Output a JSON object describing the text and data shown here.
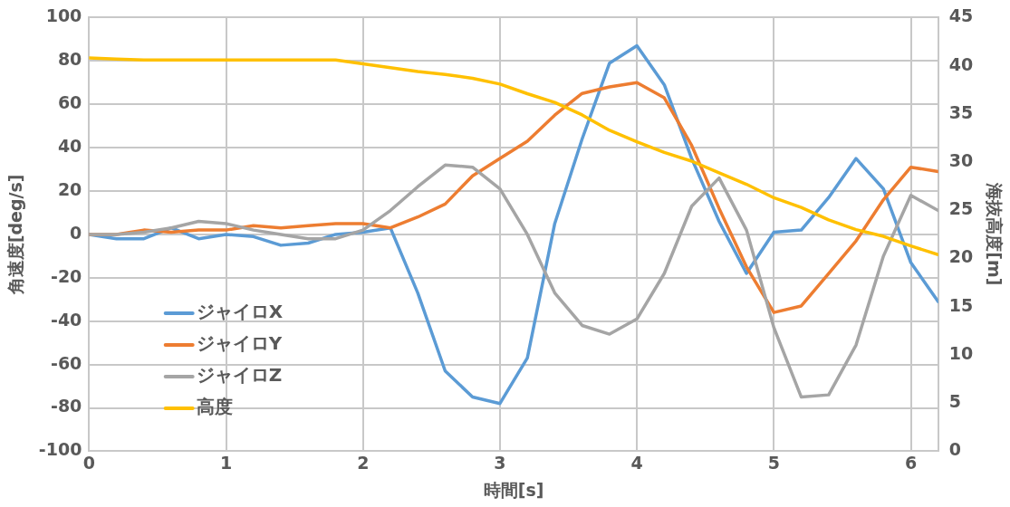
{
  "chart_data": {
    "type": "line",
    "xlabel": "時間[s]",
    "ylabel": "角速度[deg/s]",
    "y2label": "海抜高度[m]",
    "x": [
      0,
      0.2,
      0.4,
      0.6,
      0.8,
      1,
      1.2,
      1.4,
      1.6,
      1.8,
      2,
      2.2,
      2.4,
      2.6,
      2.8,
      3,
      3.2,
      3.4,
      3.6,
      3.8,
      4,
      4.2,
      4.4,
      4.6,
      4.8,
      5,
      5.2,
      5.4,
      5.6,
      5.8,
      6,
      6.2
    ],
    "series": [
      {
        "name": "ジャイロX",
        "color": "#5b9bd5",
        "values": [
          0,
          -2,
          -2,
          3,
          -2,
          0,
          -1,
          -5,
          -4,
          0,
          1,
          3,
          -27,
          -63,
          -75,
          -78,
          -57,
          5,
          44,
          79,
          87,
          69,
          35,
          6,
          -18,
          1,
          2,
          17,
          35,
          21,
          -13,
          -31
        ]
      },
      {
        "name": "ジャイロY",
        "color": "#ed7d31",
        "values": [
          0,
          0,
          2,
          1,
          2,
          2,
          4,
          3,
          4,
          5,
          5,
          3,
          8,
          14,
          27,
          35,
          43,
          55,
          65,
          68,
          70,
          63,
          41,
          12,
          -15,
          -36,
          -33,
          -18,
          -3,
          16,
          31,
          29
        ]
      },
      {
        "name": "ジャイロZ",
        "color": "#a5a5a5",
        "values": [
          0,
          0,
          1,
          3,
          6,
          5,
          2,
          0,
          -2,
          -2,
          2,
          11,
          22,
          32,
          31,
          21,
          0,
          -27,
          -42,
          -46,
          -39,
          -18,
          13,
          26,
          2,
          -43,
          -75,
          -74,
          -51,
          -10,
          18,
          11
        ]
      },
      {
        "name": "高度",
        "color": "#ffc000",
        "axis": "y2",
        "values": [
          40.8,
          40.7,
          40.6,
          40.6,
          40.6,
          40.6,
          40.6,
          40.6,
          40.6,
          40.6,
          40.2,
          39.8,
          39.4,
          39.1,
          38.7,
          38.1,
          37.1,
          36.2,
          34.9,
          33.3,
          32.1,
          31,
          30.1,
          28.9,
          27.7,
          26.3,
          25.3,
          24,
          23,
          22.3,
          21.3,
          20.4
        ]
      }
    ],
    "xlim": [
      0,
      6.2
    ],
    "xticks": [
      0,
      1,
      2,
      3,
      4,
      5,
      6
    ],
    "ylim": [
      -100,
      100
    ],
    "yticks": [
      -100,
      -80,
      -60,
      -40,
      -20,
      0,
      20,
      40,
      60,
      80,
      100
    ],
    "y2lim": [
      0,
      45
    ],
    "y2ticks": [
      0,
      5,
      10,
      15,
      20,
      25,
      30,
      35,
      40,
      45
    ],
    "grid": true,
    "legend": "bottom left",
    "marker": "none",
    "line_style": "solid"
  }
}
